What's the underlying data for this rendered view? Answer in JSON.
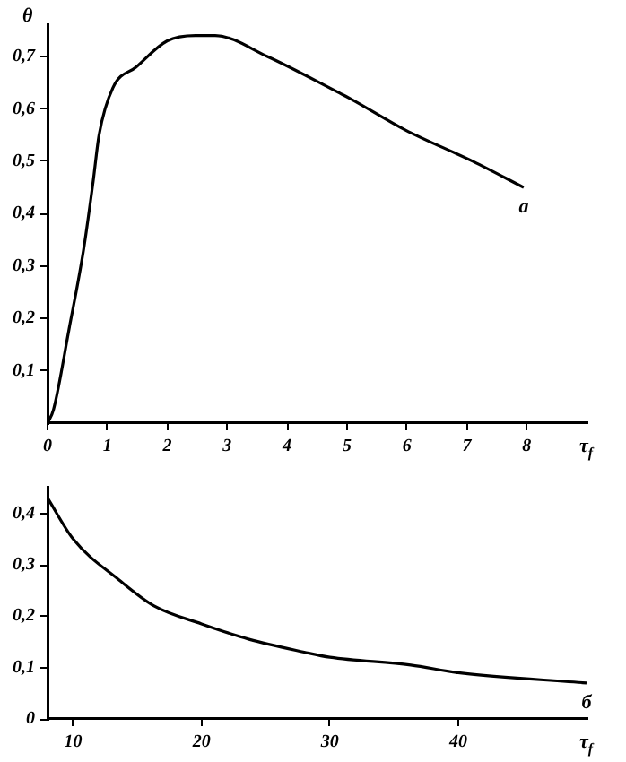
{
  "chart_data": [
    {
      "type": "line",
      "ylabel": "θ",
      "xlabel": "τ$_{f}$",
      "color": "#000000",
      "x": [
        0,
        0.1,
        0.36,
        0.6,
        0.76,
        0.86,
        1.09,
        1.48,
        2.0,
        2.47,
        2.8,
        3.67,
        4.88,
        5.05,
        5.97,
        7.1,
        7.95
      ],
      "values": [
        0,
        0.026,
        0.18,
        0.33,
        0.46,
        0.55,
        0.64,
        0.68,
        0.73,
        0.74,
        0.74,
        0.7,
        0.63,
        0.62,
        0.56,
        0.5,
        0.45
      ],
      "xlim": [
        0,
        9
      ],
      "xticks": [
        0,
        1,
        2,
        3,
        4,
        5,
        6,
        7,
        8
      ],
      "ylim": [
        0,
        0.76
      ],
      "yticks": [
        {
          "value": 0.1,
          "label": "0,1"
        },
        {
          "value": 0.2,
          "label": "0,2"
        },
        {
          "value": 0.3,
          "label": "0,3"
        },
        {
          "value": 0.4,
          "label": "0,4"
        },
        {
          "value": 0.5,
          "label": "0,5"
        },
        {
          "value": 0.6,
          "label": "0,6"
        },
        {
          "value": 0.7,
          "label": "0,7"
        }
      ],
      "annotations": [
        {
          "text": "а",
          "x": 7.95,
          "y": 0.45
        }
      ]
    },
    {
      "type": "line",
      "xlabel": "τ$_{f}$",
      "color": "#000000",
      "x": [
        8,
        10,
        13.6,
        16.3,
        20,
        23.7,
        28,
        30,
        36.3,
        40,
        50
      ],
      "values": [
        0.43,
        0.35,
        0.27,
        0.22,
        0.185,
        0.155,
        0.13,
        0.12,
        0.105,
        0.09,
        0.07
      ],
      "xlim": [
        8,
        50
      ],
      "xticks": [
        10,
        20,
        30,
        40
      ],
      "ylim": [
        0,
        0.45
      ],
      "yticks": [
        0,
        {
          "value": 0.1,
          "label": "0,1"
        },
        {
          "value": 0.2,
          "label": "0,2"
        },
        {
          "value": 0.3,
          "label": "0,3"
        },
        {
          "value": 0.4,
          "label": "0,4"
        }
      ],
      "annotations": [
        {
          "text": "б",
          "x": 50,
          "y": 0.07
        }
      ]
    }
  ]
}
